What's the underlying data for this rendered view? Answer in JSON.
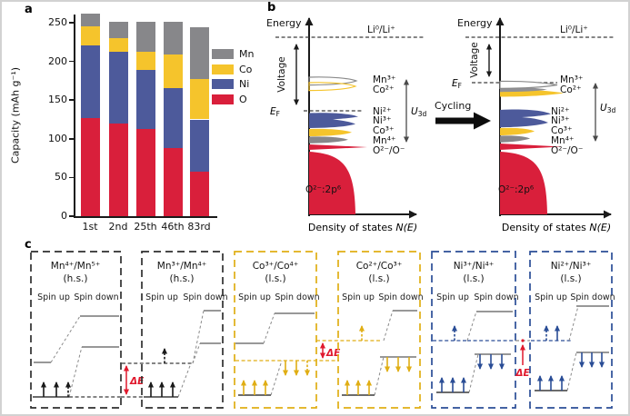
{
  "panel_labels": {
    "a": "a",
    "b": "b",
    "c": "c"
  },
  "colors": {
    "mn": "#87878a",
    "co": "#f5c42c",
    "ni": "#4d5a9b",
    "o": "#d91f3b",
    "mn_text": "#3f3f41",
    "co_text": "#e0ae14",
    "ni_text": "#2a4d96",
    "red": "#e0192d",
    "axis": "#1a1a1a",
    "mn_border": "#2f2f2f"
  },
  "chart_data": {
    "type": "bar",
    "stacked": true,
    "title": "",
    "xlabel": "",
    "ylabel": "Capacity (mAh g⁻¹)",
    "categories": [
      "1st",
      "2nd",
      "25th",
      "46th",
      "83rd"
    ],
    "series": [
      {
        "name": "O",
        "color_key": "o",
        "values": [
          127,
          120,
          113,
          88,
          58
        ]
      },
      {
        "name": "Ni",
        "color_key": "ni",
        "values": [
          94,
          92,
          76,
          77,
          67
        ]
      },
      {
        "name": "Co",
        "color_key": "co",
        "values": [
          24,
          18,
          23,
          44,
          52
        ]
      },
      {
        "name": "Mn",
        "color_key": "mn",
        "values": [
          17,
          21,
          39,
          42,
          67
        ]
      }
    ],
    "totals": [
      262,
      251,
      251,
      251,
      244
    ],
    "legend": [
      {
        "label": "Mn",
        "color_key": "mn"
      },
      {
        "label": "Co",
        "color_key": "co"
      },
      {
        "label": "Ni",
        "color_key": "ni"
      },
      {
        "label": "O",
        "color_key": "o"
      }
    ],
    "yticks": [
      0,
      50,
      100,
      150,
      200,
      250
    ],
    "ylim": [
      0,
      265
    ],
    "grid": false,
    "legend_position": "right"
  },
  "dos": {
    "energy_label": "Energy",
    "li_label": "Li⁰/Li⁺",
    "voltage_label": "Voltage",
    "fermi_base": "E",
    "fermi_sub": "F",
    "u_base": "U",
    "u_sub": "3d",
    "upper_states": {
      "mn3": "Mn³⁺",
      "co2": "Co²⁺"
    },
    "lower_states": {
      "ni2": "Ni²⁺",
      "ni3": "Ni³⁺",
      "co3": "Co³⁺",
      "mn4": "Mn⁴⁺",
      "o": "O²⁻/O⁻"
    },
    "o2p_label": "O²⁻:2p⁶",
    "xlabel_main": "Density of states ",
    "xlabel_math": "N(E)",
    "cycling_label": "Cycling"
  },
  "spin_boxes": [
    {
      "title": "Mn⁴⁺/Mn⁵⁺",
      "subtitle": "(h.s.)",
      "spin_up": "Spin up",
      "spin_down": "Spin down",
      "theme": "mn"
    },
    {
      "title": "Mn³⁺/Mn⁴⁺",
      "subtitle": "(h.s.)",
      "spin_up": "Spin up",
      "spin_down": "Spin down",
      "theme": "mn"
    },
    {
      "title": "Co³⁺/Co⁴⁺",
      "subtitle": "(l.s.)",
      "spin_up": "Spin up",
      "spin_down": "Spin down",
      "theme": "co"
    },
    {
      "title": "Co²⁺/Co³⁺",
      "subtitle": "(l.s.)",
      "spin_up": "Spin up",
      "spin_down": "Spin down",
      "theme": "co"
    },
    {
      "title": "Ni³⁺/Ni⁴⁺",
      "subtitle": "(l.s.)",
      "spin_up": "Spin up",
      "spin_down": "Spin down",
      "theme": "ni"
    },
    {
      "title": "Ni²⁺/Ni³⁺",
      "subtitle": "(l.s.)",
      "spin_up": "Spin up",
      "spin_down": "Spin down",
      "theme": "ni"
    }
  ],
  "annotations": {
    "delta_e": "ΔE"
  }
}
